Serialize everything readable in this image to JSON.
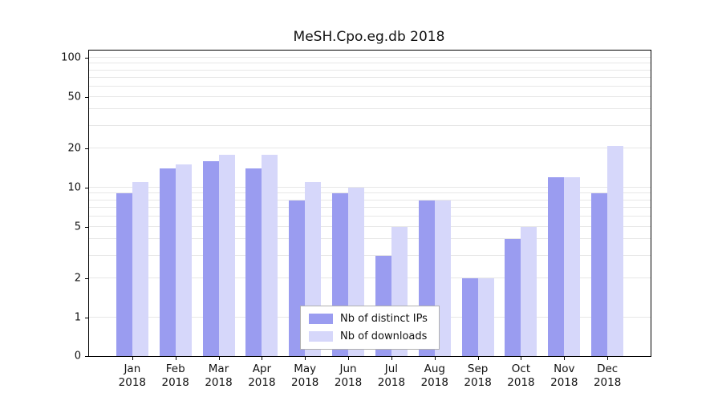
{
  "title": "MeSH.Cpo.eg.db 2018",
  "chart_data": {
    "type": "bar",
    "title": "MeSH.Cpo.eg.db 2018",
    "yscale": "log",
    "ylim": [
      0,
      100
    ],
    "ytick_labels": [
      100,
      50,
      20,
      10,
      5,
      2,
      1,
      0
    ],
    "grid": true,
    "legend_position": "bottom-center",
    "categories": [
      "Jan 2018",
      "Feb 2018",
      "Mar 2018",
      "Apr 2018",
      "May 2018",
      "Jun 2018",
      "Jul 2018",
      "Aug 2018",
      "Sep 2018",
      "Oct 2018",
      "Nov 2018",
      "Dec 2018"
    ],
    "series": [
      {
        "name": "Nb of distinct IPs",
        "color": "#9a9cf0",
        "values": [
          9,
          14,
          16,
          14,
          8,
          9,
          3,
          8,
          2,
          4,
          12,
          9
        ]
      },
      {
        "name": "Nb of downloads",
        "color": "#d6d7fa",
        "values": [
          11,
          15,
          18,
          18,
          11,
          10,
          5,
          8,
          2,
          5,
          12,
          21
        ]
      }
    ]
  },
  "colors": {
    "grid": "#e7e7e7",
    "axis": "#000000",
    "background": "#ffffff"
  }
}
